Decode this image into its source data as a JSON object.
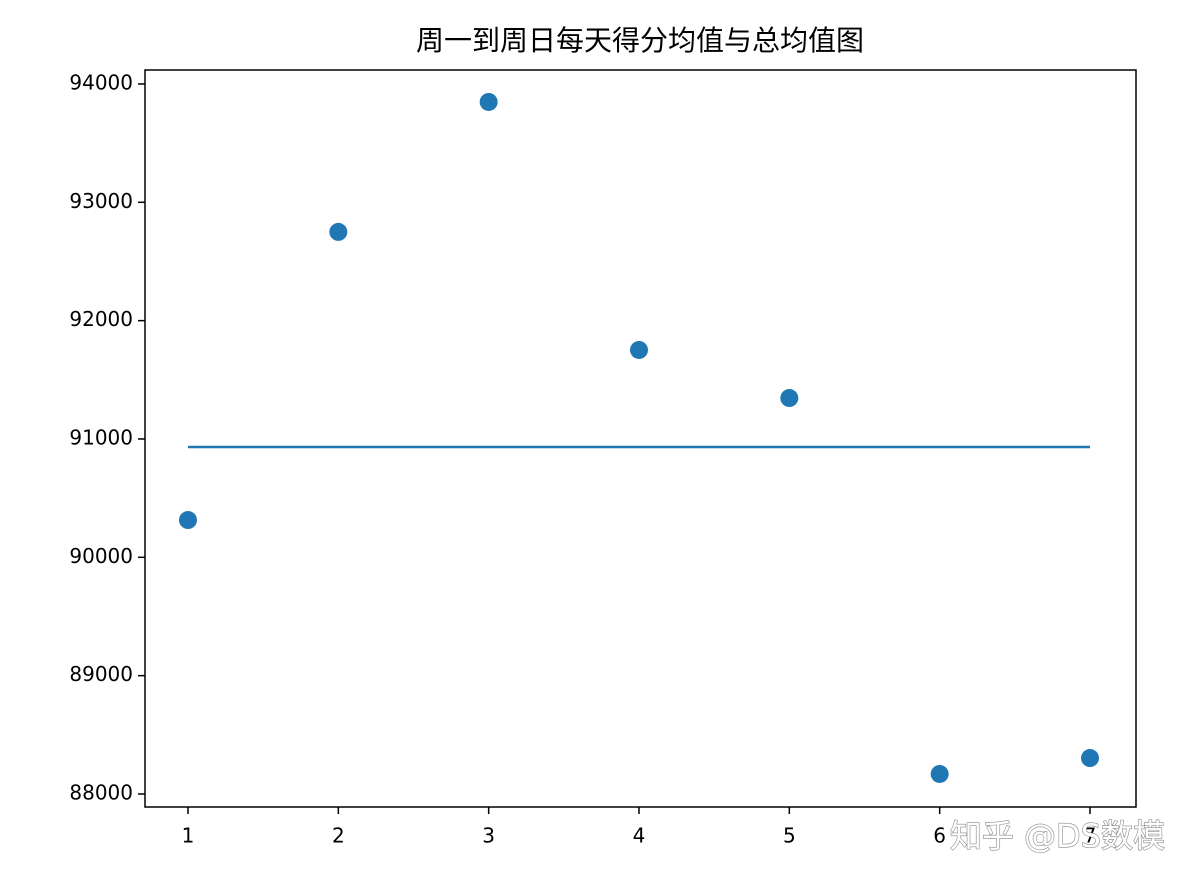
{
  "chart_data": {
    "type": "scatter",
    "title": "周一到周日每天得分均值与总均值图",
    "x": [
      1,
      2,
      3,
      4,
      5,
      6,
      7
    ],
    "values": [
      90315,
      92750,
      93848,
      91752,
      91346,
      88169,
      88304
    ],
    "color": "#1f77b4",
    "hline": {
      "y": 90932,
      "x": [
        1,
        7
      ],
      "color": "#1f77b4"
    },
    "xlim": [
      0.714,
      7.306
    ],
    "ylim": [
      87890,
      94118
    ],
    "xticks": [
      1,
      2,
      3,
      4,
      5,
      6,
      7
    ],
    "yticks": [
      88000,
      89000,
      90000,
      91000,
      92000,
      93000,
      94000
    ],
    "watermark": "知乎 @DS数模"
  }
}
